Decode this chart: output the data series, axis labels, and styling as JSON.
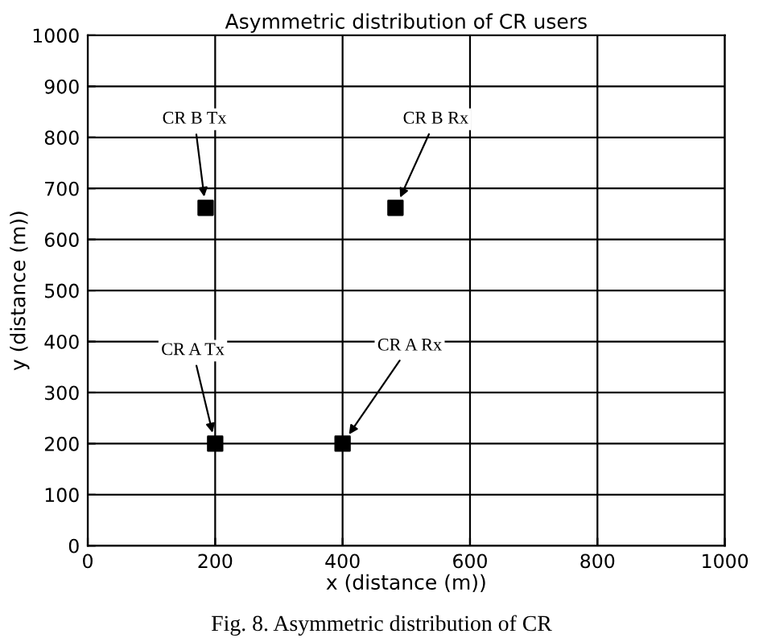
{
  "chart_data": {
    "type": "scatter",
    "title": "Asymmetric distribution of CR users",
    "xlabel": "x (distance (m))",
    "ylabel": "y (distance (m))",
    "x": [
      200,
      400,
      185,
      483
    ],
    "values": [
      200,
      200,
      662,
      662
    ],
    "color": "#000000",
    "marker": "square",
    "xlim": [
      0,
      1000
    ],
    "ylim": [
      0,
      1000
    ],
    "xticks": [
      0,
      200,
      400,
      600,
      800,
      1000
    ],
    "yticks": [
      0,
      100,
      200,
      300,
      400,
      500,
      600,
      700,
      800,
      900,
      1000
    ],
    "grid": true,
    "annotations": [
      {
        "text": "CR A Tx",
        "x": 200,
        "y": 200
      },
      {
        "text": "CR A Rx",
        "x": 400,
        "y": 200
      },
      {
        "text": "CR B Tx",
        "x": 185,
        "y": 662
      },
      {
        "text": "CR B Rx",
        "x": 483,
        "y": 662
      },
      "Fig. 8. Asymmetric distribution of CR"
    ]
  }
}
